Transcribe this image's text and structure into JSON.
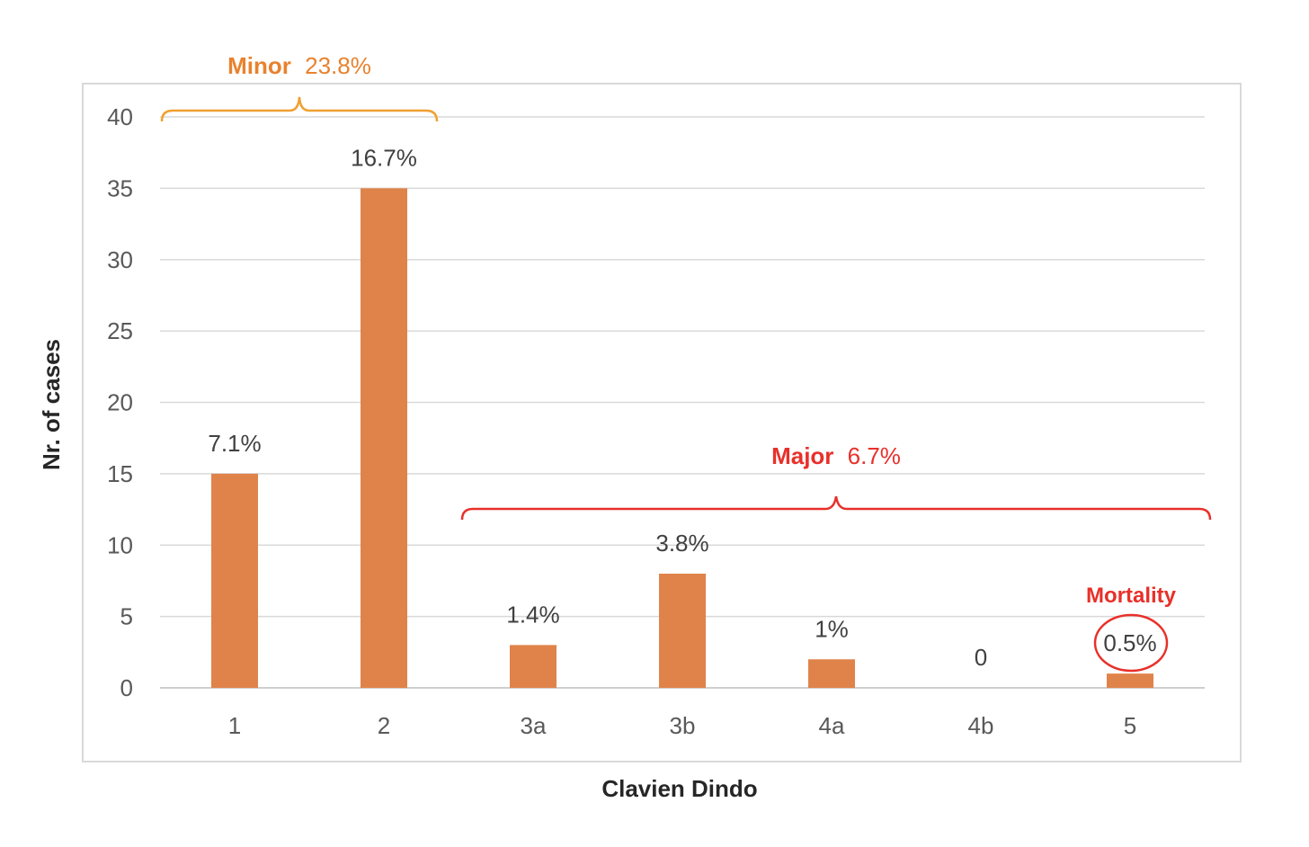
{
  "chart_data": {
    "type": "bar",
    "categories": [
      "1",
      "2",
      "3a",
      "3b",
      "4a",
      "4b",
      "5"
    ],
    "values": [
      15,
      35,
      3,
      8,
      2,
      0,
      1
    ],
    "data_labels": [
      "7.1%",
      "16.7%",
      "1.4%",
      "3.8%",
      "1%",
      "0",
      "0.5%"
    ],
    "xlabel": "Clavien Dindo",
    "ylabel": "Nr. of cases",
    "ylim": [
      0,
      40
    ],
    "yticks": [
      "0",
      "5",
      "10",
      "15",
      "20",
      "25",
      "30",
      "35",
      "40"
    ],
    "grid": true,
    "bar_color": "#E0834A",
    "annotations": {
      "minor": {
        "name": "Minor",
        "value": "23.8%",
        "color": "#E8822E",
        "brace_color": "#F0A030",
        "span": [
          "1",
          "2"
        ]
      },
      "major": {
        "name": "Major",
        "value": "6.7%",
        "color": "#E8302A",
        "span": [
          "3a",
          "5"
        ]
      },
      "mortality": {
        "label": "Mortality",
        "color": "#E8302A",
        "category": "5"
      }
    }
  }
}
